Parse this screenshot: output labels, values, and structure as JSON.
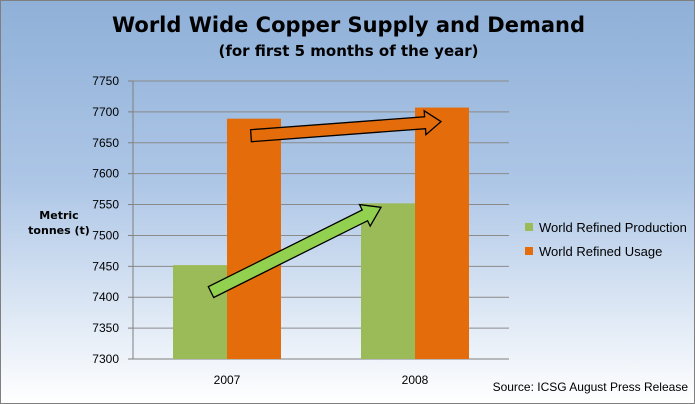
{
  "chart_data": {
    "type": "bar",
    "title": "World Wide Copper Supply and Demand",
    "subtitle": "(for first 5 months of the year)",
    "ylabel": "Metric tonnes (t)",
    "xlabel": "",
    "categories": [
      "2007",
      "2008"
    ],
    "ylim": [
      7300,
      7750
    ],
    "yticks": [
      7300,
      7350,
      7400,
      7450,
      7500,
      7550,
      7600,
      7650,
      7700,
      7750
    ],
    "grid": true,
    "legend_position": "right",
    "series": [
      {
        "name": "World Refined Production",
        "values": [
          7452,
          7552
        ],
        "color": "#9bbb59"
      },
      {
        "name": "World Refined Usage",
        "values": [
          7689,
          7707
        ],
        "color": "#e46c0a"
      }
    ],
    "arrows": [
      {
        "series": "World Refined Production",
        "color": "#92d050"
      },
      {
        "series": "World Refined Usage",
        "color": "#e46c0a"
      }
    ],
    "source": "Source: ICSG August Press Release"
  }
}
